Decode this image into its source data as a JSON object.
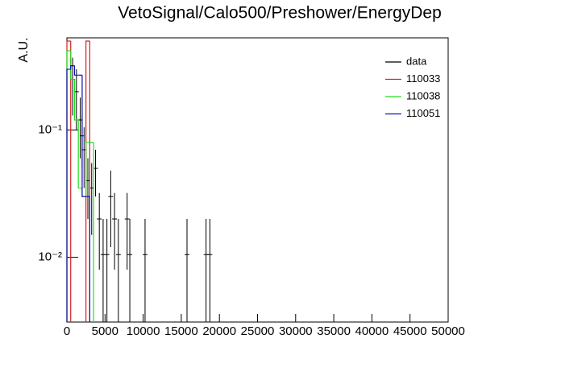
{
  "chart_data": {
    "type": "histogram",
    "title": "VetoSignal/Calo500/Preshower/EnergyDep",
    "y_label": "A.U.",
    "log_y": true,
    "legend": "top-right",
    "xlim": [
      0,
      50000
    ],
    "ylim": [
      0.0031,
      0.53
    ],
    "xticks": [
      0,
      5000,
      10000,
      15000,
      20000,
      25000,
      30000,
      35000,
      40000,
      45000,
      50000
    ],
    "yticks": [
      {
        "value": 0.1,
        "label": "10⁻¹"
      },
      {
        "value": 0.01,
        "label": "10⁻²"
      }
    ],
    "bins": [
      0,
      500,
      1000,
      1500,
      2000,
      2500,
      3000,
      3500,
      4000,
      4500,
      5000
    ],
    "series": [
      {
        "name": "data",
        "color": "#000000",
        "x": [
          750,
          1250,
          1750,
          2000,
          2250,
          2750,
          3250,
          3750,
          4250,
          4750,
          5250,
          5750,
          6250,
          6750,
          7900,
          8250,
          10250,
          15750,
          18250,
          18750
        ],
        "values": [
          0.25,
          0.2,
          0.12,
          0.09,
          0.07,
          0.04,
          0.035,
          0.05,
          0.02,
          0.0105,
          0.0105,
          0.03,
          0.02,
          0.0105,
          0.02,
          0.0105,
          0.0105,
          0.0105,
          0.0105,
          0.0105
        ],
        "errors": [
          0.12,
          0.1,
          0.06,
          0.04,
          0.035,
          0.02,
          0.02,
          0.02,
          0.012,
          0.0095,
          0.0095,
          0.018,
          0.012,
          0.0095,
          0.012,
          0.0095,
          0.0095,
          0.0095,
          0.0095,
          0.0095
        ]
      },
      {
        "name": "110033",
        "color": "#d42020",
        "values": [
          0.5,
          null,
          null,
          null,
          null,
          0.5,
          null,
          null,
          null,
          null
        ]
      },
      {
        "name": "110038",
        "color": "#22dd22",
        "values": [
          0.42,
          0.25,
          0.12,
          0.035,
          0.03,
          0.08,
          0.08,
          null,
          null,
          null
        ]
      },
      {
        "name": "110051",
        "color": "#1010b0",
        "values": [
          0.3,
          0.32,
          0.27,
          0.27,
          0.03,
          0.03,
          null,
          null,
          null,
          null
        ]
      }
    ]
  }
}
